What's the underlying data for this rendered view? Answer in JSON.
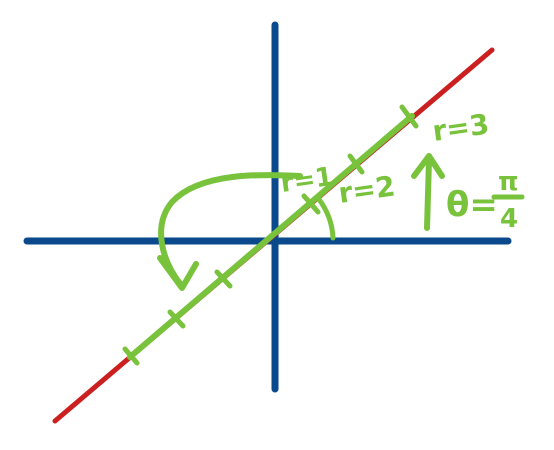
{
  "colors": {
    "axes": "#0a4a8c",
    "line": "#cc1f1f",
    "annotation": "#78c23c",
    "background": "#ffffff"
  },
  "labels": {
    "r1": "r=1",
    "r2": "r=2",
    "r3": "r=3",
    "theta_lhs": "θ=",
    "theta_num": "π",
    "theta_den": "4"
  }
}
